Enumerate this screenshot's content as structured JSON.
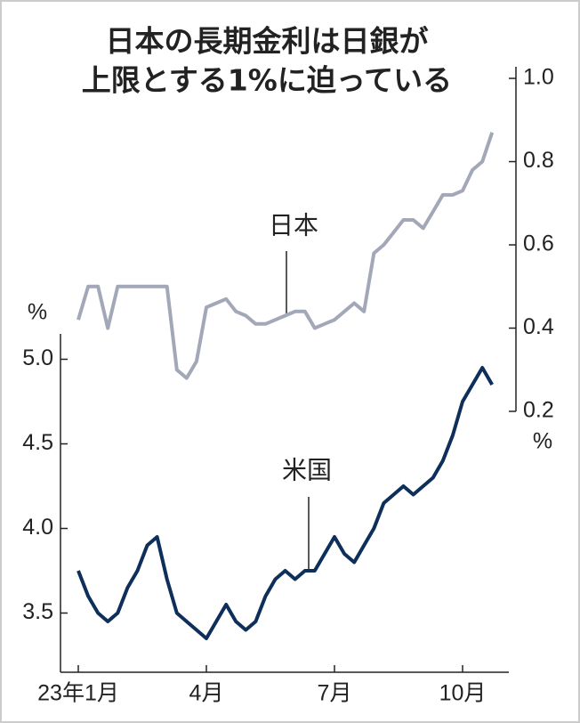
{
  "chart_data": {
    "type": "line",
    "title": [
      "日本の長期金利は日銀が",
      "上限とする1%に迫っている"
    ],
    "categories": [
      "23年1月",
      null,
      null,
      null,
      null,
      null,
      null,
      null,
      null,
      null,
      null,
      null,
      null,
      "4月",
      null,
      null,
      null,
      null,
      null,
      null,
      null,
      null,
      null,
      null,
      null,
      null,
      "7月",
      null,
      null,
      null,
      null,
      null,
      null,
      null,
      null,
      null,
      null,
      null,
      null,
      "10月",
      null,
      null,
      null
    ],
    "series": [
      {
        "name": "米国",
        "color": "#0d2f5a",
        "axis": "y",
        "values": [
          3.75,
          3.6,
          3.5,
          3.45,
          3.5,
          3.65,
          3.75,
          3.9,
          3.95,
          3.7,
          3.5,
          3.45,
          3.4,
          3.35,
          3.45,
          3.55,
          3.45,
          3.4,
          3.45,
          3.6,
          3.7,
          3.75,
          3.7,
          3.75,
          3.75,
          3.85,
          3.95,
          3.85,
          3.8,
          3.9,
          4.0,
          4.15,
          4.2,
          4.25,
          4.2,
          4.25,
          4.3,
          4.4,
          4.55,
          4.75,
          4.85,
          4.95,
          4.85
        ]
      },
      {
        "name": "日本",
        "color": "#a3a8b8",
        "axis": "y2",
        "values": [
          0.42,
          0.5,
          0.5,
          0.4,
          0.5,
          0.5,
          0.5,
          0.5,
          0.5,
          0.5,
          0.3,
          0.28,
          0.32,
          0.45,
          0.46,
          0.47,
          0.44,
          0.43,
          0.41,
          0.41,
          0.42,
          0.43,
          0.44,
          0.44,
          0.4,
          0.41,
          0.42,
          0.44,
          0.46,
          0.44,
          0.58,
          0.6,
          0.63,
          0.66,
          0.66,
          0.64,
          0.68,
          0.72,
          0.72,
          0.73,
          0.78,
          0.8,
          0.87
        ]
      }
    ],
    "ylabel": "%",
    "y2label": "%",
    "ylim": [
      3.15,
      5.15
    ],
    "yticks": [
      {
        "value": 3.5,
        "label": "3.5"
      },
      {
        "value": 4,
        "label": "4.0"
      },
      {
        "value": 4.5,
        "label": "4.5"
      },
      {
        "value": 5,
        "label": "5.0"
      }
    ],
    "y2lim": [
      0.2,
      1.03
    ],
    "y2ticks": [
      0.2,
      0.4,
      0.6,
      0.8,
      {
        "value": 1,
        "label": "1.0"
      }
    ]
  }
}
